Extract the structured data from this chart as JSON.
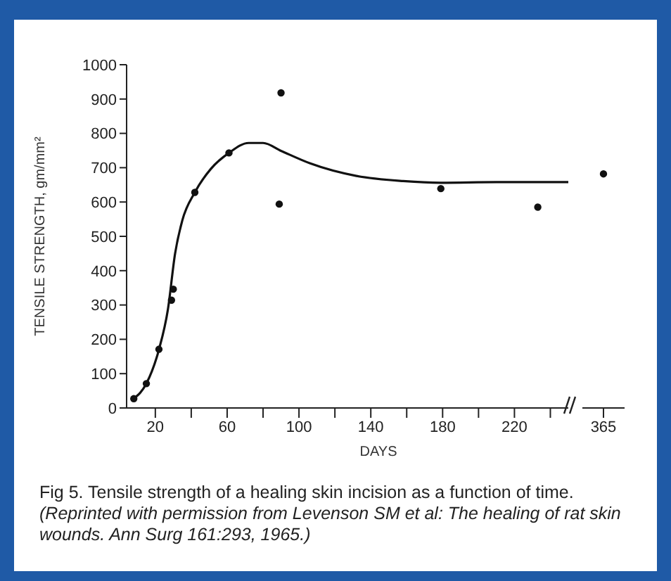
{
  "chart_data": [
    {
      "type": "scatter",
      "xlabel": "DAYS",
      "ylabel": "TENSILE STRENGTH, gm/mm²",
      "xlim": [
        4,
        250
      ],
      "xticks": [
        20,
        {
          "value": 40,
          "label": null
        },
        60,
        {
          "value": 80,
          "label": null
        },
        100,
        {
          "value": 120,
          "label": null
        },
        140,
        {
          "value": 160,
          "label": null
        },
        180,
        {
          "value": 200,
          "label": null
        },
        220,
        {
          "value": 240,
          "label": null
        }
      ],
      "ylim": [
        0,
        1000
      ],
      "yticks": [
        0,
        100,
        200,
        300,
        400,
        500,
        600,
        700,
        800,
        900,
        1000
      ],
      "grid": false,
      "marker": "circle",
      "annotations": [
        "Fig 5. Tensile strength of a healing skin incision as a function of time.",
        "(Reprinted with permission from Levenson SM et al: The healing of rat skin wounds. Ann Surg 161:293, 1965.)"
      ],
      "series": [
        {
          "type": "scatter",
          "color": "#111111",
          "x": [
            8,
            15,
            22,
            29,
            30,
            42,
            61,
            89,
            90,
            179,
            233
          ],
          "values": [
            27,
            71,
            171,
            314,
            346,
            628,
            743,
            594,
            918,
            639,
            585
          ]
        },
        {
          "type": "line",
          "color": "#111111",
          "marker": "none",
          "line_style": "solid",
          "x": [
            8,
            15,
            22,
            27,
            31,
            35,
            42,
            51,
            61,
            72,
            80,
            90,
            106,
            132,
            158,
            179,
            210,
            231,
            250
          ],
          "values": [
            27,
            71,
            170,
            287,
            450,
            546,
            628,
            697,
            743,
            772,
            772,
            749,
            713,
            676,
            661,
            656,
            658,
            658,
            658
          ]
        }
      ]
    },
    {
      "type": "scatter",
      "categories": [
        "365"
      ],
      "ylim": [
        0,
        1000
      ],
      "tick_labels": "x",
      "grid": false,
      "marker": "circle",
      "series": [
        {
          "type": "scatter",
          "color": "#111111",
          "values": [
            682
          ]
        }
      ]
    }
  ]
}
